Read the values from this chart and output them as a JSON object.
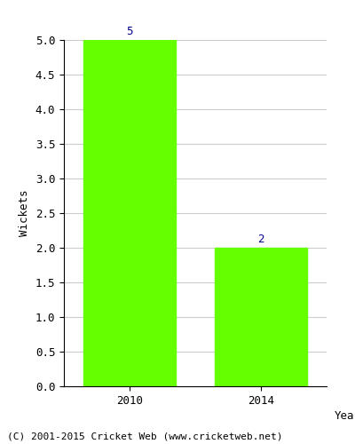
{
  "categories": [
    "2010",
    "2014"
  ],
  "values": [
    5,
    2
  ],
  "bar_color": "#66ff00",
  "bar_edge_color": "#66ff00",
  "xlabel": "Year",
  "ylabel": "Wickets",
  "ylim": [
    0,
    5.0
  ],
  "yticks": [
    0.0,
    0.5,
    1.0,
    1.5,
    2.0,
    2.5,
    3.0,
    3.5,
    4.0,
    4.5,
    5.0
  ],
  "annotation_color": "#00008b",
  "annotation_fontsize": 9,
  "xlabel_fontsize": 9,
  "ylabel_fontsize": 9,
  "tick_fontsize": 9,
  "footer_text": "(C) 2001-2015 Cricket Web (www.cricketweb.net)",
  "footer_fontsize": 8,
  "background_color": "#ffffff",
  "grid_color": "#cccccc",
  "bar_width": 0.7
}
